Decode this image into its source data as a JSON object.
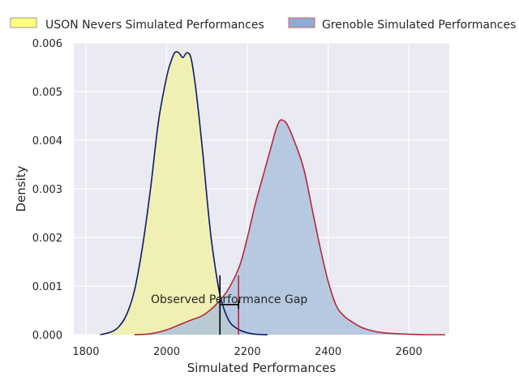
{
  "chart_data": {
    "type": "area",
    "title": "",
    "xlabel": "Simulated Performances",
    "ylabel": "Density",
    "xlim": [
      1770,
      2700
    ],
    "ylim": [
      0,
      0.006
    ],
    "x_ticks": [
      1800,
      2000,
      2200,
      2400,
      2600
    ],
    "y_ticks": [
      0.0,
      0.001,
      0.002,
      0.003,
      0.004,
      0.005,
      0.006
    ],
    "y_tick_labels": [
      "0.000",
      "0.001",
      "0.002",
      "0.003",
      "0.004",
      "0.005",
      "0.006"
    ],
    "grid": true,
    "legend_placement": "top",
    "series": [
      {
        "name": "USON Nevers Simulated Performances",
        "fill_color": "#f0f0b0",
        "line_color": "#0d1a6b",
        "legend_fill": "#ffff80",
        "legend_edge": "#9a9a9a",
        "x": [
          1835,
          1860,
          1880,
          1900,
          1920,
          1940,
          1960,
          1980,
          2000,
          2010,
          2020,
          2030,
          2040,
          2050,
          2060,
          2070,
          2080,
          2090,
          2100,
          2110,
          2120,
          2130,
          2140,
          2150,
          2160,
          2180,
          2200,
          2220,
          2250
        ],
        "y": [
          0.0,
          5e-05,
          0.00015,
          0.0004,
          0.0009,
          0.0018,
          0.003,
          0.0044,
          0.0053,
          0.0056,
          0.0058,
          0.0058,
          0.0057,
          0.0058,
          0.0057,
          0.0052,
          0.0045,
          0.0037,
          0.0028,
          0.002,
          0.0014,
          0.0009,
          0.00058,
          0.00036,
          0.00022,
          0.0001,
          4e-05,
          1e-05,
          0.0
        ]
      },
      {
        "name": "Grenoble Simulated Performances",
        "fill_color": "#aac0dc",
        "line_color": "#b82838",
        "legend_fill": "#8fabd1",
        "legend_edge": "#d76070",
        "x": [
          1920,
          1960,
          2000,
          2030,
          2060,
          2090,
          2120,
          2150,
          2180,
          2200,
          2220,
          2240,
          2260,
          2270,
          2280,
          2290,
          2300,
          2320,
          2340,
          2360,
          2380,
          2400,
          2420,
          2440,
          2460,
          2480,
          2500,
          2520,
          2550,
          2600,
          2640,
          2690
        ],
        "y": [
          0.0,
          2e-05,
          0.0001,
          0.0002,
          0.0003,
          0.0004,
          0.0006,
          0.0009,
          0.0014,
          0.002,
          0.0027,
          0.0033,
          0.0039,
          0.0042,
          0.0044,
          0.0044,
          0.0043,
          0.0039,
          0.0034,
          0.0026,
          0.0018,
          0.0011,
          0.0006,
          0.00038,
          0.00026,
          0.00016,
          0.0001,
          6e-05,
          3e-05,
          1e-05,
          0.0,
          0.0
        ]
      }
    ],
    "annotation": {
      "text": "Observed Performance Gap",
      "gap_start": 2132,
      "gap_end": 2178,
      "vline_height": 0.00122,
      "bracket_y": 0.00062,
      "start_color": "#000000",
      "end_color": "#b82838"
    },
    "plot_background": "#eaeaf2",
    "grid_color": "#ffffff"
  }
}
